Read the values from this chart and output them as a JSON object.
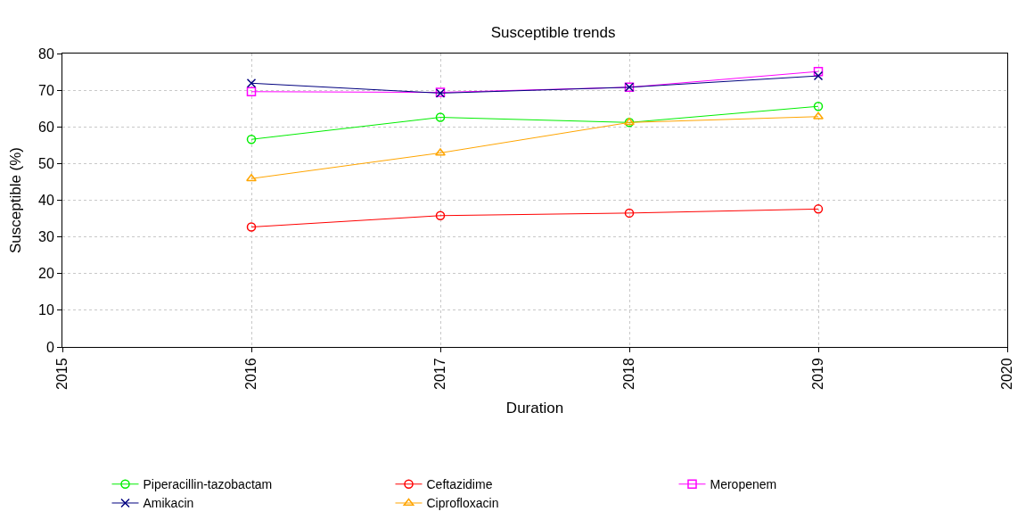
{
  "chart_data": {
    "type": "line",
    "title": "Susceptible trends",
    "xlabel": "Duration",
    "ylabel": "Susceptible (%)",
    "x": [
      2016,
      2017,
      2018,
      2019
    ],
    "series": [
      {
        "name": "Piperacillin-tazobactam",
        "color": "#00ee00",
        "marker": "circle",
        "values": [
          56.6,
          62.6,
          61.2,
          65.6
        ]
      },
      {
        "name": "Ceftazidime",
        "color": "#ff0000",
        "marker": "circle",
        "values": [
          32.7,
          35.8,
          36.5,
          37.6
        ]
      },
      {
        "name": "Meropenem",
        "color": "#ff00ff",
        "marker": "square",
        "values": [
          69.6,
          69.4,
          70.8,
          75.1
        ]
      },
      {
        "name": "Amikacin",
        "color": "#00007f",
        "marker": "cross",
        "values": [
          71.9,
          69.2,
          70.8,
          73.9
        ]
      },
      {
        "name": "Ciprofloxacin",
        "color": "#ffa500",
        "marker": "triangle",
        "values": [
          45.9,
          52.9,
          61.2,
          62.8
        ]
      }
    ],
    "xlim": [
      2015,
      2020
    ],
    "xticks": [
      2015,
      2016,
      2017,
      2018,
      2019,
      2020
    ],
    "ylim": [
      0,
      80
    ],
    "yticks": [
      0,
      10,
      20,
      30,
      40,
      50,
      60,
      70,
      80
    ],
    "grid": true,
    "legend": "bottom",
    "line_style": "solid"
  }
}
